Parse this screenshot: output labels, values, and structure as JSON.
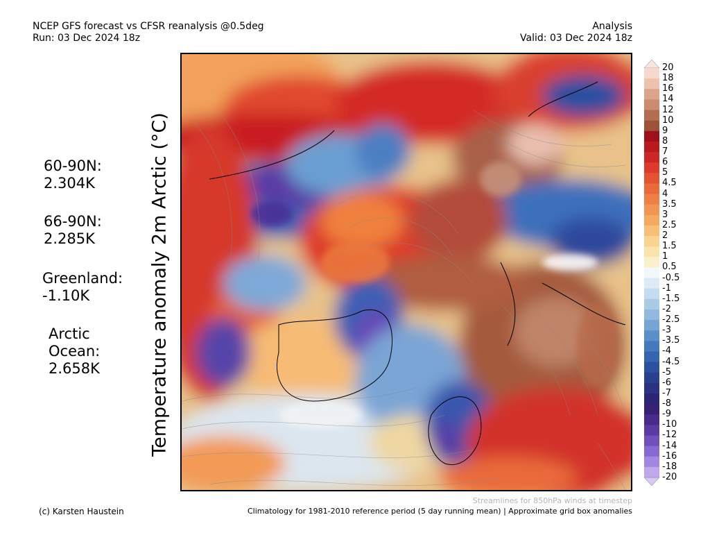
{
  "header": {
    "title_line1": "NCEP GFS forecast vs CFSR reanalysis @0.5deg",
    "title_line2": "Run: 03 Dec 2024 18z",
    "right_line1": "Analysis",
    "right_line2": "Valid: 03 Dec 2024 18z"
  },
  "vertical_title": "Temperature anomaly 2m Arctic (°C)",
  "stats": [
    {
      "label": "60-90N:\n 2.304K"
    },
    {
      "label": "66-90N:\n 2.285K"
    },
    {
      "label": "Greenland:\n -1.10K"
    },
    {
      "label": "Arctic\nOcean:\n2.658K"
    }
  ],
  "colorbar": {
    "labels": [
      "20",
      "18",
      "16",
      "14",
      "12",
      "10",
      "9",
      "8",
      "7",
      "6",
      "5",
      "4.5",
      "4",
      "3.5",
      "3",
      "2.5",
      "2",
      "1.5",
      "1",
      "0.5",
      "-0.5",
      "-1",
      "-1.5",
      "-2",
      "-2.5",
      "-3",
      "-3.5",
      "-4",
      "-4.5",
      "-5",
      "-6",
      "-7",
      "-8",
      "-9",
      "-10",
      "-12",
      "-14",
      "-16",
      "-18",
      "-20"
    ],
    "colors": [
      "#f4d9cc",
      "#ecc2ad",
      "#dea48a",
      "#cc8a6e",
      "#b36d50",
      "#9e5336",
      "#a0101a",
      "#b81a1e",
      "#cd2626",
      "#dc3a2c",
      "#e45232",
      "#ea6a3a",
      "#ee8046",
      "#f29552",
      "#f5aa62",
      "#f8bf76",
      "#fad38e",
      "#fbe3ac",
      "#fcf0cc",
      "#f2f7fb",
      "#dcebf6",
      "#c4dcef",
      "#a9cbe6",
      "#8fb9de",
      "#74a5d4",
      "#5a90c9",
      "#4479bd",
      "#3564b0",
      "#2b509f",
      "#27408f",
      "#2a3282",
      "#2c2575",
      "#372172",
      "#4a2b8b",
      "#5c3aa4",
      "#7050bd",
      "#8868d2",
      "#a386e2",
      "#c0a8ef"
    ],
    "under_color": "#d8c8f6",
    "over_color": "#f8e6de"
  },
  "footer": {
    "credit": "(c) Karsten Haustein",
    "streamlines_note": "Streamlines for 850hPa winds at timestep",
    "climatology": "Climatology for 1981-2010 reference period (5 day running mean) | Approximate grid box anomalies"
  }
}
